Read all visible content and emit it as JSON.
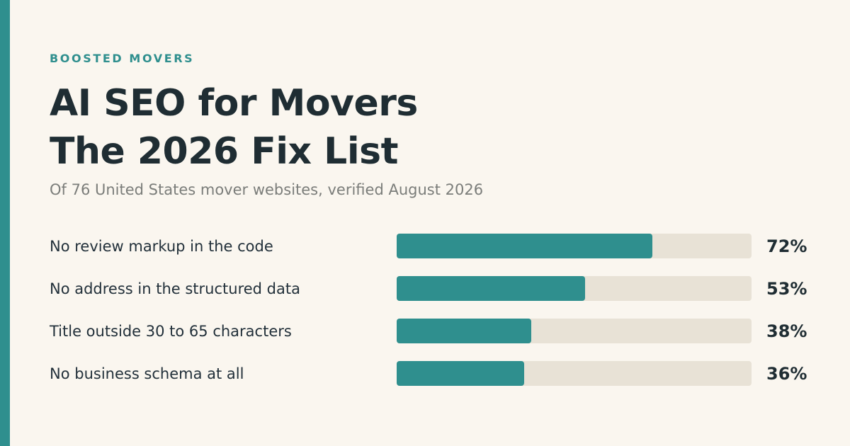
{
  "brand": "BOOSTED MOVERS",
  "title_line1": "AI SEO for Movers",
  "title_line2": "The 2026 Fix List",
  "subtitle": "Of 76 United States mover websites, verified August 2026",
  "colors": {
    "accent": "#2f8f8e",
    "track": "#e8e2d6",
    "background": "#faf6ef",
    "text": "#1f2d33"
  },
  "chart_data": {
    "type": "bar",
    "orientation": "horizontal",
    "categories": [
      "No review markup in the code",
      "No address in the structured data",
      "Title outside 30 to 65 characters",
      "No business schema at all"
    ],
    "values": [
      72,
      53,
      38,
      36
    ],
    "value_labels": [
      "72%",
      "53%",
      "38%",
      "36%"
    ],
    "xlim": [
      0,
      100
    ],
    "grid": false,
    "legend": "none"
  }
}
